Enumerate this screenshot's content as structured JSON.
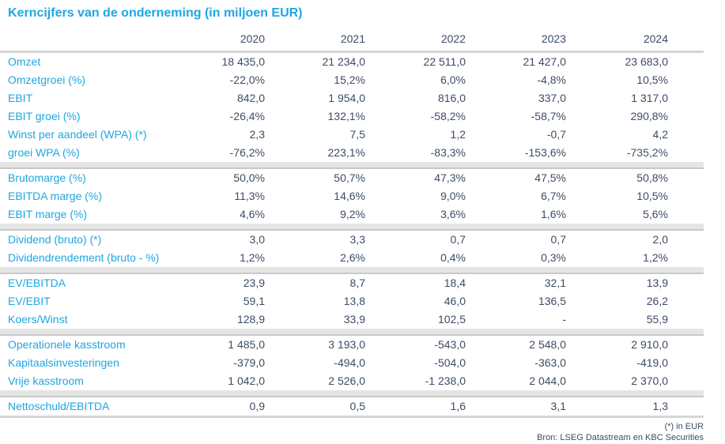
{
  "chart_data": {
    "type": "table",
    "title": "Kerncijfers van de onderneming (in miljoen EUR)",
    "columns": [
      "2020",
      "2021",
      "2022",
      "2023",
      "2024"
    ],
    "sections": [
      {
        "rows": [
          {
            "label": "Omzet",
            "values": [
              "18 435,0",
              "21 234,0",
              "22 511,0",
              "21 427,0",
              "23 683,0"
            ]
          },
          {
            "label": "Omzetgroei (%)",
            "values": [
              "-22,0%",
              "15,2%",
              "6,0%",
              "-4,8%",
              "10,5%"
            ]
          },
          {
            "label": "EBIT",
            "values": [
              "842,0",
              "1 954,0",
              "816,0",
              "337,0",
              "1 317,0"
            ]
          },
          {
            "label": "EBIT groei (%)",
            "values": [
              "-26,4%",
              "132,1%",
              "-58,2%",
              "-58,7%",
              "290,8%"
            ]
          },
          {
            "label": "Winst per aandeel (WPA) (*)",
            "values": [
              "2,3",
              "7,5",
              "1,2",
              "-0,7",
              "4,2"
            ]
          },
          {
            "label": "groei WPA (%)",
            "values": [
              "-76,2%",
              "223,1%",
              "-83,3%",
              "-153,6%",
              "-735,2%"
            ]
          }
        ]
      },
      {
        "rows": [
          {
            "label": "Brutomarge (%)",
            "values": [
              "50,0%",
              "50,7%",
              "47,3%",
              "47,5%",
              "50,8%"
            ]
          },
          {
            "label": "EBITDA marge (%)",
            "values": [
              "11,3%",
              "14,6%",
              "9,0%",
              "6,7%",
              "10,5%"
            ]
          },
          {
            "label": "EBIT marge (%)",
            "values": [
              "4,6%",
              "9,2%",
              "3,6%",
              "1,6%",
              "5,6%"
            ]
          }
        ]
      },
      {
        "rows": [
          {
            "label": "Dividend (bruto) (*)",
            "values": [
              "3,0",
              "3,3",
              "0,7",
              "0,7",
              "2,0"
            ]
          },
          {
            "label": "Dividendrendement (bruto - %)",
            "values": [
              "1,2%",
              "2,6%",
              "0,4%",
              "0,3%",
              "1,2%"
            ]
          }
        ]
      },
      {
        "rows": [
          {
            "label": "EV/EBITDA",
            "values": [
              "23,9",
              "8,7",
              "18,4",
              "32,1",
              "13,9"
            ]
          },
          {
            "label": "EV/EBIT",
            "values": [
              "59,1",
              "13,8",
              "46,0",
              "136,5",
              "26,2"
            ]
          },
          {
            "label": "Koers/Winst",
            "values": [
              "128,9",
              "33,9",
              "102,5",
              "-",
              "55,9"
            ]
          }
        ]
      },
      {
        "rows": [
          {
            "label": "Operationele kasstroom",
            "values": [
              "1 485,0",
              "3 193,0",
              "-543,0",
              "2 548,0",
              "2 910,0"
            ]
          },
          {
            "label": "Kapitaalsinvesteringen",
            "values": [
              "-379,0",
              "-494,0",
              "-504,0",
              "-363,0",
              "-419,0"
            ]
          },
          {
            "label": "Vrije kasstroom",
            "values": [
              "1 042,0",
              "2 526,0",
              "-1 238,0",
              "2 044,0",
              "2 370,0"
            ]
          }
        ]
      },
      {
        "rows": [
          {
            "label": "Nettoschuld/EBITDA",
            "values": [
              "0,9",
              "0,5",
              "1,6",
              "3,1",
              "1,3"
            ]
          }
        ]
      }
    ],
    "footnotes": [
      "(*) in EUR",
      "Bron: LSEG Datastream en KBC Securities"
    ],
    "layout_hints": {
      "value_alignment": "right",
      "section_separator": "gray-bar",
      "grid": "off"
    }
  },
  "colors": {
    "accent": "#1fa6e0",
    "text": "#3d4c66",
    "bar": "#e5e5e5",
    "rule": "#c9c9c9",
    "headrule": "#d6d6d6"
  }
}
